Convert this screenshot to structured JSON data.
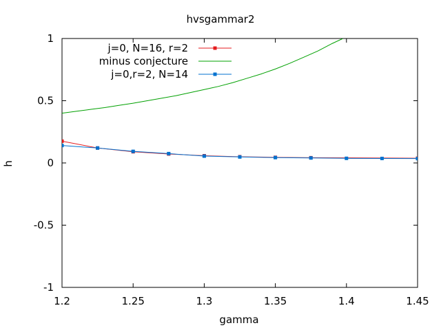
{
  "chart_data": {
    "type": "line",
    "title": "hvsgammar2",
    "xlabel": "gamma",
    "ylabel": "h",
    "xlim": [
      1.2,
      1.45
    ],
    "ylim": [
      -1,
      1
    ],
    "xticks": [
      1.2,
      1.25,
      1.3,
      1.35,
      1.4,
      1.45
    ],
    "xtick_labels": [
      "1.2",
      "1.25",
      "1.3",
      "1.35",
      "1.4",
      "1.45"
    ],
    "yticks": [
      -1,
      -0.5,
      0,
      0.5,
      1
    ],
    "ytick_labels": [
      "-1",
      "-0.5",
      "0",
      "0.5",
      "1"
    ],
    "grid": false,
    "legend_position": "top-right",
    "series": [
      {
        "name": "j=0, N=16, r=2",
        "color": "#e41a1c",
        "marker": "square",
        "x": [
          1.2,
          1.225,
          1.25,
          1.275,
          1.3,
          1.325,
          1.35,
          1.375,
          1.45
        ],
        "y": [
          0.175,
          0.12,
          0.09,
          0.072,
          0.058,
          0.05,
          0.045,
          0.042,
          0.038
        ]
      },
      {
        "name": "minus conjecture",
        "color": "#00a000",
        "marker": "none",
        "x": [
          1.2,
          1.21,
          1.22,
          1.23,
          1.24,
          1.25,
          1.26,
          1.27,
          1.28,
          1.29,
          1.3,
          1.31,
          1.32,
          1.33,
          1.34,
          1.35,
          1.36,
          1.37,
          1.38,
          1.39,
          1.3975
        ],
        "y": [
          0.4,
          0.415,
          0.43,
          0.445,
          0.463,
          0.48,
          0.5,
          0.52,
          0.54,
          0.565,
          0.59,
          0.615,
          0.645,
          0.68,
          0.715,
          0.755,
          0.8,
          0.85,
          0.9,
          0.96,
          1.0
        ]
      },
      {
        "name": "j=0,r=2, N=14",
        "color": "#0072cf",
        "marker": "square",
        "x": [
          1.2,
          1.225,
          1.25,
          1.275,
          1.3,
          1.325,
          1.35,
          1.375,
          1.4,
          1.425,
          1.45
        ],
        "y": [
          0.14,
          0.12,
          0.093,
          0.075,
          0.055,
          0.048,
          0.043,
          0.04,
          0.037,
          0.036,
          0.035
        ]
      }
    ]
  }
}
